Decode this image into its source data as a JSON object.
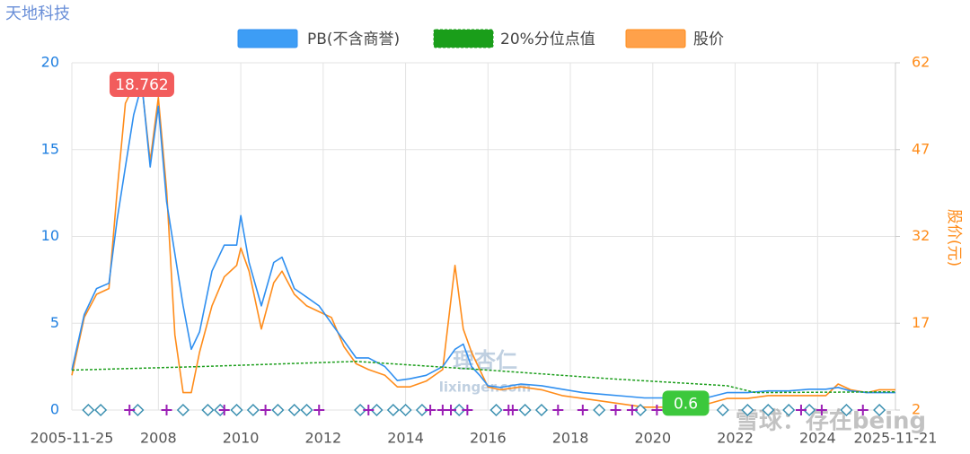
{
  "chart_data": {
    "type": "line",
    "title": "天地科技",
    "y2_label": "股价(元)",
    "x": [
      2005.9,
      2006.2,
      2006.5,
      2006.8,
      2007.0,
      2007.2,
      2007.4,
      2007.6,
      2007.8,
      2008.0,
      2008.2,
      2008.4,
      2008.6,
      2008.8,
      2009.0,
      2009.3,
      2009.6,
      2009.9,
      2010.0,
      2010.2,
      2010.5,
      2010.8,
      2011.0,
      2011.3,
      2011.6,
      2011.9,
      2012.2,
      2012.5,
      2012.8,
      2013.1,
      2013.5,
      2013.8,
      2014.1,
      2014.5,
      2014.9,
      2015.2,
      2015.4,
      2015.6,
      2015.8,
      2016.0,
      2016.3,
      2016.8,
      2017.3,
      2017.8,
      2018.3,
      2018.8,
      2019.3,
      2019.8,
      2020.3,
      2020.8,
      2021.3,
      2021.8,
      2022.3,
      2022.8,
      2023.3,
      2023.8,
      2024.2,
      2024.5,
      2024.8,
      2025.2,
      2025.5,
      2025.89
    ],
    "series": [
      {
        "name": "PB(不含商誉)",
        "color": "#2f8ff0",
        "legend_color": "#3d9df5",
        "values": [
          2.3,
          5.5,
          7.0,
          7.3,
          11,
          14,
          17,
          18.762,
          14,
          17.5,
          12,
          9,
          6,
          3.5,
          4.5,
          8,
          9.5,
          9.5,
          11.2,
          8.5,
          6,
          8.5,
          8.8,
          7,
          6.5,
          6,
          5,
          4,
          3,
          3,
          2.5,
          1.7,
          1.8,
          2.0,
          2.5,
          3.5,
          3.8,
          2.5,
          2.0,
          1.4,
          1.3,
          1.5,
          1.4,
          1.2,
          1.0,
          0.9,
          0.8,
          0.7,
          0.7,
          0.65,
          0.7,
          1.0,
          1.0,
          1.1,
          1.1,
          1.2,
          1.2,
          1.3,
          1.1,
          1.0,
          1.0,
          1.0
        ]
      },
      {
        "name": "20%分位点值",
        "color": "#1b9e1b",
        "legend_color": "#1a9e1a",
        "dashed": true,
        "x": [
          2005.9,
          2009,
          2012.8,
          2016,
          2019,
          2021.8,
          2022.5,
          2025.89
        ],
        "values": [
          2.3,
          2.5,
          2.8,
          2.3,
          1.8,
          1.4,
          1.0,
          1.05
        ]
      },
      {
        "name": "股价",
        "color": "#ff8c1a",
        "legend_color": "#ffa14a",
        "axis": "y2",
        "values": [
          8,
          18,
          22,
          23,
          40,
          55,
          58,
          58,
          45,
          56,
          40,
          15,
          5,
          5,
          12,
          20,
          25,
          27,
          30,
          26,
          16,
          24,
          26,
          22,
          20,
          19,
          18,
          13,
          10,
          9,
          8,
          6,
          6,
          7,
          9,
          27,
          16,
          12,
          9,
          6,
          5.5,
          6,
          5.5,
          4.5,
          4,
          3.5,
          3,
          2.5,
          2.5,
          2.5,
          3,
          4,
          4,
          4.5,
          4.5,
          4.5,
          4.5,
          6.5,
          5.5,
          5,
          5.5,
          5.5
        ]
      }
    ],
    "xlim": [
      2005.9,
      2025.89
    ],
    "xticks": [
      {
        "value": 2005.9,
        "label": "2005-11-25"
      },
      2008,
      2010,
      2012,
      2014,
      2016,
      2018,
      2020,
      2022,
      2024,
      {
        "value": 2025.89,
        "label": "2025-11-21"
      }
    ],
    "ylim": [
      0,
      20
    ],
    "yticks": [
      0,
      5,
      10,
      15,
      20
    ],
    "y2lim": [
      2,
      62
    ],
    "y2ticks": [
      2,
      17,
      32,
      47,
      62
    ],
    "grid": true,
    "annotations": [
      {
        "x": 2007.6,
        "value": 18.762,
        "label": "18.762",
        "color": "#f25c5c"
      },
      {
        "x": 2020.8,
        "value": 0.6,
        "label": "0.6",
        "color": "#3cc83c"
      }
    ],
    "signals": {
      "diamond": [
        2006.3,
        2006.6,
        2007.5,
        2008.6,
        2009.2,
        2009.5,
        2009.9,
        2010.3,
        2010.9,
        2011.3,
        2011.6,
        2012.9,
        2013.3,
        2013.7,
        2014.0,
        2014.4,
        2015.3,
        2016.2,
        2016.9,
        2017.3,
        2018.7,
        2019.7,
        2021.7,
        2022.3,
        2022.8,
        2023.3,
        2023.8,
        2024.7,
        2025.5
      ],
      "plus": [
        2007.3,
        2008.2,
        2009.6,
        2010.6,
        2011.9,
        2013.1,
        2014.6,
        2014.9,
        2015.1,
        2015.5,
        2016.5,
        2016.6,
        2017.7,
        2018.3,
        2019.1,
        2019.5,
        2020.1,
        2020.7,
        2021.1,
        2023.6,
        2024.1,
        2025.1
      ]
    },
    "watermarks": [
      "理杏仁",
      "lixinger.com",
      "雪球：存在being"
    ]
  }
}
